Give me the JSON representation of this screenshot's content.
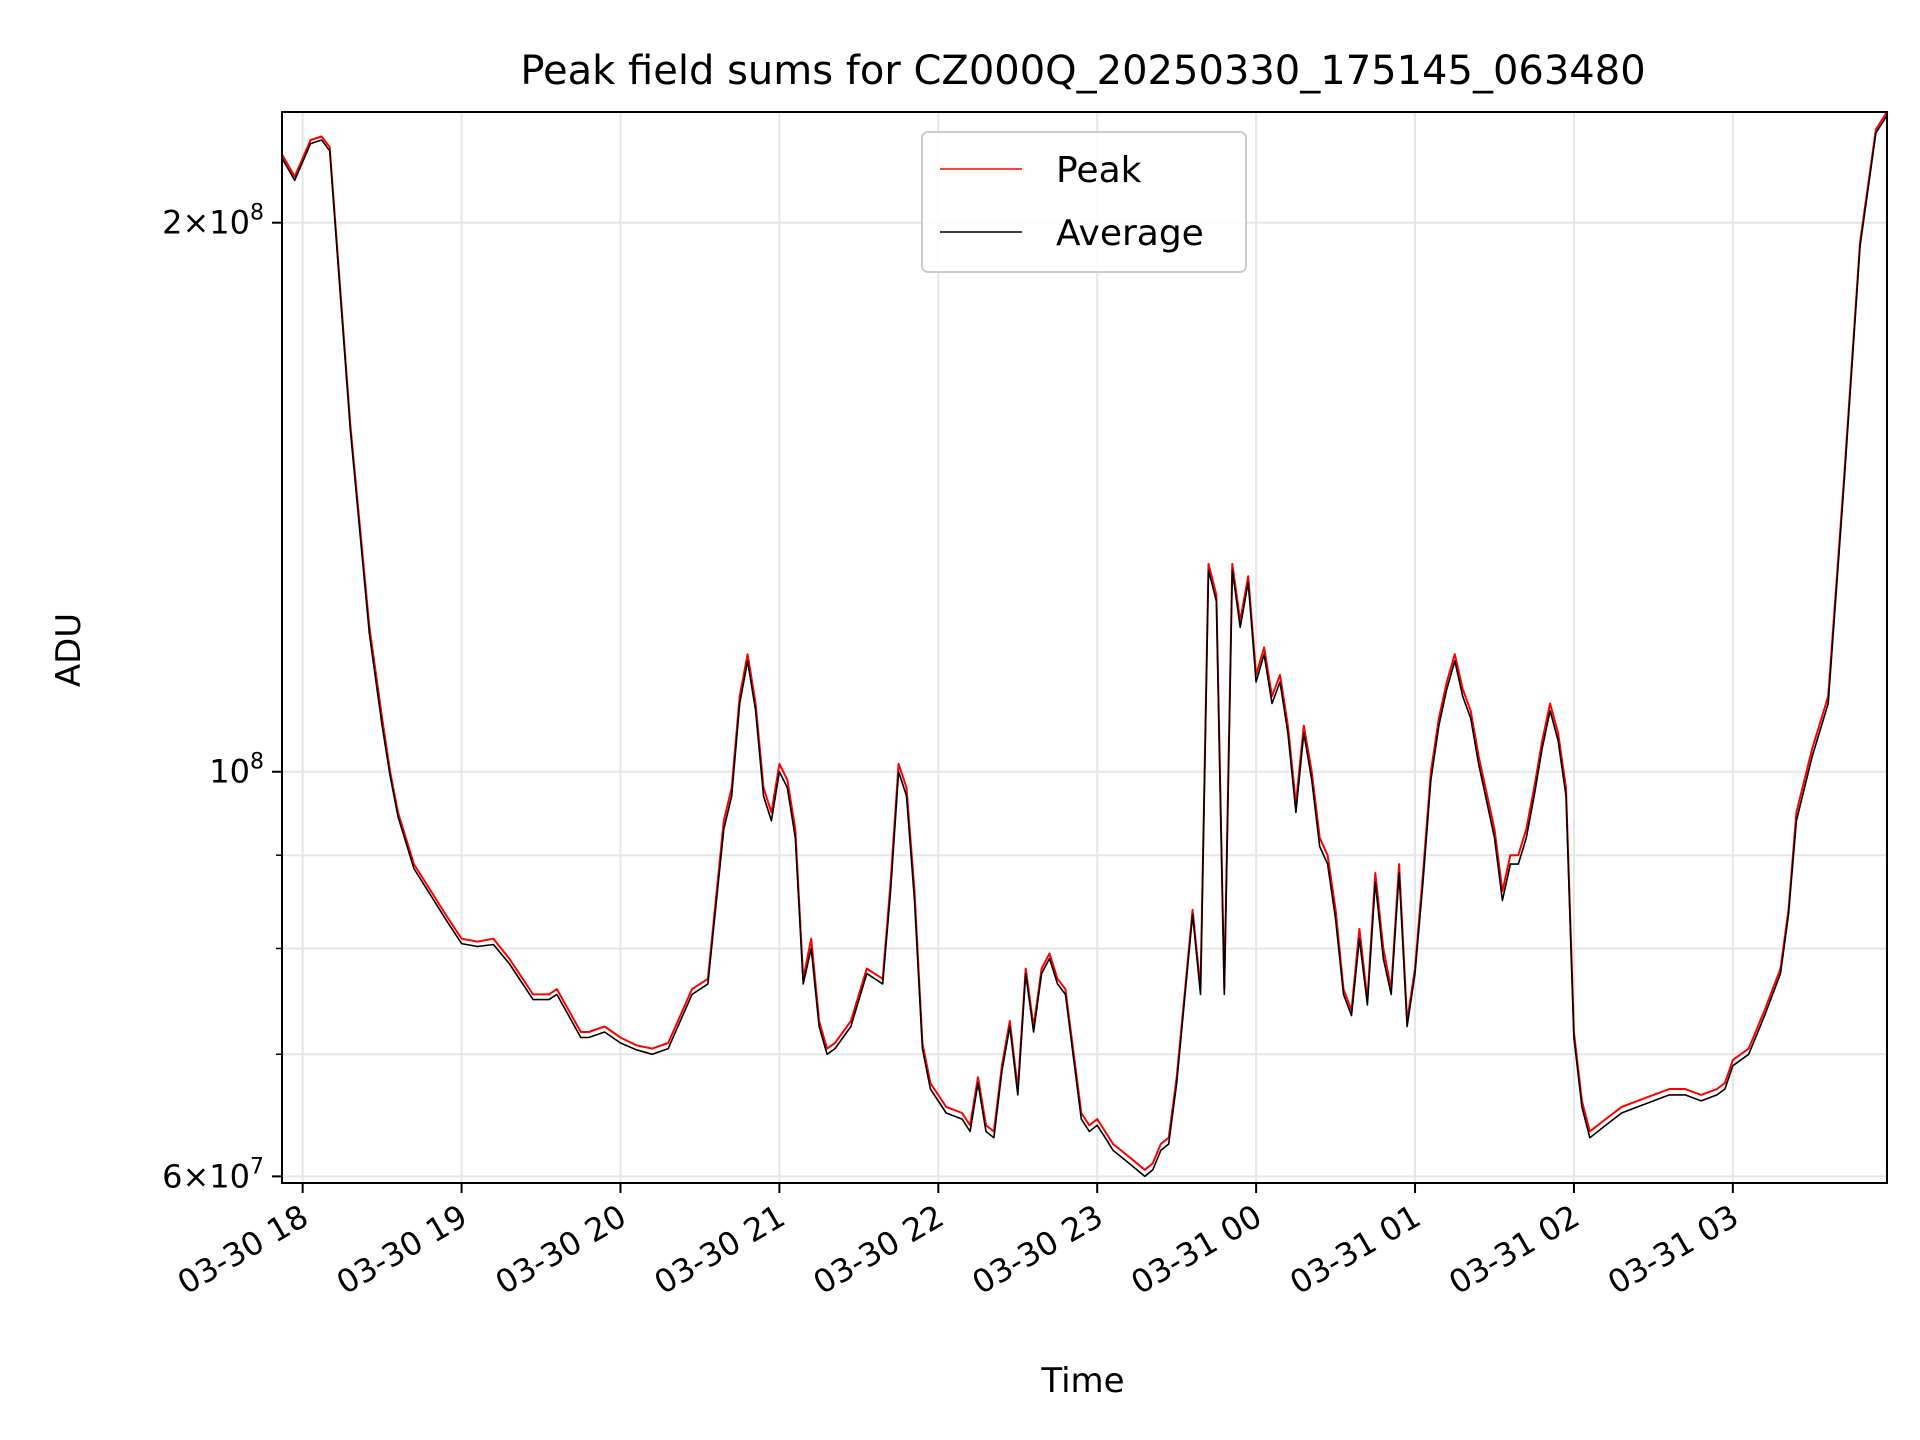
{
  "chart_data": {
    "type": "line",
    "title": "Peak field sums for CZ000Q_20250330_175145_063480",
    "xlabel": "Time",
    "ylabel": "ADU",
    "y_scale": "log",
    "ylim": [
      59500000,
      230000000
    ],
    "xlim_hours": [
      17.87,
      27.97
    ],
    "x_hour_offsets": [
      17.87,
      17.95,
      18.05,
      18.12,
      18.17,
      18.3,
      18.42,
      18.5,
      18.55,
      18.6,
      18.7,
      18.9,
      19.0,
      19.1,
      19.2,
      19.3,
      19.45,
      19.55,
      19.6,
      19.75,
      19.8,
      19.9,
      20.0,
      20.1,
      20.2,
      20.3,
      20.45,
      20.55,
      20.65,
      20.7,
      20.75,
      20.8,
      20.85,
      20.9,
      20.95,
      21.0,
      21.05,
      21.1,
      21.15,
      21.2,
      21.25,
      21.3,
      21.35,
      21.45,
      21.55,
      21.65,
      21.7,
      21.75,
      21.8,
      21.85,
      21.9,
      21.95,
      22.05,
      22.15,
      22.2,
      22.25,
      22.3,
      22.35,
      22.4,
      22.45,
      22.5,
      22.55,
      22.6,
      22.65,
      22.7,
      22.75,
      22.8,
      22.9,
      22.95,
      23.0,
      23.05,
      23.1,
      23.15,
      23.2,
      23.3,
      23.35,
      23.4,
      23.45,
      23.5,
      23.55,
      23.6,
      23.65,
      23.7,
      23.75,
      23.8,
      23.85,
      23.9,
      23.95,
      24.0,
      24.05,
      24.1,
      24.15,
      24.2,
      24.25,
      24.3,
      24.35,
      24.4,
      24.45,
      24.5,
      24.55,
      24.6,
      24.65,
      24.7,
      24.75,
      24.8,
      24.85,
      24.9,
      24.95,
      25.0,
      25.05,
      25.1,
      25.15,
      25.2,
      25.25,
      25.3,
      25.35,
      25.4,
      25.5,
      25.55,
      25.6,
      25.65,
      25.7,
      25.75,
      25.8,
      25.85,
      25.9,
      25.95,
      26.0,
      26.05,
      26.1,
      26.15,
      26.2,
      26.3,
      26.4,
      26.5,
      26.6,
      26.7,
      26.8,
      26.9,
      26.95,
      27.0,
      27.1,
      27.2,
      27.3,
      27.35,
      27.4,
      27.5,
      27.6,
      27.7,
      27.8,
      27.9,
      27.97
    ],
    "series": [
      {
        "name": "Peak",
        "color": "#ff0000",
        "line_width": 1,
        "values": [
          218000000.0,
          212000000.0,
          222000000.0,
          223000000.0,
          220000000.0,
          155000000.0,
          120000000.0,
          107000000.0,
          100000000.0,
          95000000.0,
          89000000.0,
          83500000.0,
          81000000.0,
          80700000.0,
          81000000.0,
          79000000.0,
          75500000.0,
          75500000.0,
          76000000.0,
          72000000.0,
          72000000.0,
          72500000.0,
          71500000.0,
          70800000.0,
          70500000.0,
          71000000.0,
          76000000.0,
          77000000.0,
          94000000.0,
          98000000.0,
          110000000.0,
          116000000.0,
          109000000.0,
          98000000.0,
          95000000.0,
          101000000.0,
          99000000.0,
          93000000.0,
          77000000.0,
          81000000.0,
          73000000.0,
          70500000.0,
          71000000.0,
          73000000.0,
          78000000.0,
          77000000.0,
          87000000.0,
          101000000.0,
          98000000.0,
          86000000.0,
          71000000.0,
          67500000.0,
          65500000.0,
          65000000.0,
          64000000.0,
          68000000.0,
          64000000.0,
          63500000.0,
          69000000.0,
          73000000.0,
          67000000.0,
          78000000.0,
          72500000.0,
          78000000.0,
          79500000.0,
          77000000.0,
          76000000.0,
          65000000.0,
          64000000.0,
          64500000.0,
          63500000.0,
          62500000.0,
          62000000.0,
          61500000.0,
          60500000.0,
          61000000.0,
          62500000.0,
          63000000.0,
          68000000.0,
          75500000.0,
          84000000.0,
          76000000.0,
          130000000.0,
          125000000.0,
          76000000.0,
          130000000.0,
          121000000.0,
          128000000.0,
          113000000.0,
          117000000.0,
          110000000.0,
          113000000.0,
          106000000.0,
          96000000.0,
          106000000.0,
          100000000.0,
          92000000.0,
          90000000.0,
          84000000.0,
          76000000.0,
          74000000.0,
          82000000.0,
          75000000.0,
          88000000.0,
          80000000.0,
          76000000.0,
          89000000.0,
          73000000.0,
          78000000.0,
          88000000.0,
          100000000.0,
          107000000.0,
          112000000.0,
          116000000.0,
          111000000.0,
          108000000.0,
          102000000.0,
          93000000.0,
          86000000.0,
          90000000.0,
          90000000.0,
          93000000.0,
          98000000.0,
          104000000.0,
          109000000.0,
          105000000.0,
          98000000.0,
          72000000.0,
          66000000.0,
          63500000.0,
          64000000.0,
          64500000.0,
          65500000.0,
          66000000.0,
          66500000.0,
          67000000.0,
          67000000.0,
          66500000.0,
          67000000.0,
          67500000.0,
          69500000.0,
          70500000.0,
          74000000.0,
          78000000.0,
          84000000.0,
          95000000.0,
          103000000.0,
          110000000.0,
          145000000.0,
          195000000.0,
          225000000.0,
          230000000.0,
          230000000.0
        ]
      },
      {
        "name": "Average",
        "color": "#000000",
        "line_width": 1,
        "values": [
          217000000.0,
          211000000.0,
          221000000.0,
          222000000.0,
          219000000.0,
          154000000.0,
          119000000.0,
          106000000.0,
          99500000.0,
          94500000.0,
          88500000.0,
          83000000.0,
          80500000.0,
          80200000.0,
          80400000.0,
          78500000.0,
          75000000.0,
          75000000.0,
          75500000.0,
          71500000.0,
          71500000.0,
          72000000.0,
          71000000.0,
          70400000.0,
          70000000.0,
          70500000.0,
          75500000.0,
          76500000.0,
          93000000.0,
          97000000.0,
          109000000.0,
          115000000.0,
          108000000.0,
          97000000.0,
          94000000.0,
          100000000.0,
          98000000.0,
          92000000.0,
          76500000.0,
          80000000.0,
          72500000.0,
          70000000.0,
          70500000.0,
          72500000.0,
          77500000.0,
          76500000.0,
          86000000.0,
          100000000.0,
          97000000.0,
          85000000.0,
          70500000.0,
          67000000.0,
          65000000.0,
          64500000.0,
          63500000.0,
          67500000.0,
          63500000.0,
          63000000.0,
          68500000.0,
          72500000.0,
          66500000.0,
          77500000.0,
          72000000.0,
          77500000.0,
          79000000.0,
          76500000.0,
          75500000.0,
          64500000.0,
          63500000.0,
          64000000.0,
          63000000.0,
          62000000.0,
          61500000.0,
          61000000.0,
          60000000.0,
          60500000.0,
          62000000.0,
          62500000.0,
          67500000.0,
          75000000.0,
          83500000.0,
          75500000.0,
          129000000.0,
          124000000.0,
          75500000.0,
          129000000.0,
          120000000.0,
          127000000.0,
          112000000.0,
          116000000.0,
          109000000.0,
          112000000.0,
          105000000.0,
          95000000.0,
          105000000.0,
          99000000.0,
          91000000.0,
          89000000.0,
          83000000.0,
          75500000.0,
          73500000.0,
          81000000.0,
          74500000.0,
          87000000.0,
          79000000.0,
          75500000.0,
          88000000.0,
          72500000.0,
          77500000.0,
          87000000.0,
          99000000.0,
          106000000.0,
          111000000.0,
          115000000.0,
          110000000.0,
          107000000.0,
          101000000.0,
          92000000.0,
          85000000.0,
          89000000.0,
          89000000.0,
          92000000.0,
          97000000.0,
          103000000.0,
          108000000.0,
          104000000.0,
          97000000.0,
          71500000.0,
          65500000.0,
          63000000.0,
          63500000.0,
          64000000.0,
          65000000.0,
          65500000.0,
          66000000.0,
          66500000.0,
          66500000.0,
          66000000.0,
          66500000.0,
          67000000.0,
          69000000.0,
          70000000.0,
          73500000.0,
          77500000.0,
          83500000.0,
          94000000.0,
          102000000.0,
          109000000.0,
          144000000.0,
          194000000.0,
          224000000.0,
          229000000.0,
          229000000.0
        ]
      }
    ],
    "x_ticks": [
      {
        "hour": 18,
        "label": "03-30 18"
      },
      {
        "hour": 19,
        "label": "03-30 19"
      },
      {
        "hour": 20,
        "label": "03-30 20"
      },
      {
        "hour": 21,
        "label": "03-30 21"
      },
      {
        "hour": 22,
        "label": "03-30 22"
      },
      {
        "hour": 23,
        "label": "03-30 23"
      },
      {
        "hour": 24,
        "label": "03-31 00"
      },
      {
        "hour": 25,
        "label": "03-31 01"
      },
      {
        "hour": 26,
        "label": "03-31 02"
      },
      {
        "hour": 27,
        "label": "03-31 03"
      }
    ],
    "y_major_ticks": [
      {
        "value": 60000000,
        "mantissa": "6",
        "exponent": "7"
      },
      {
        "value": 100000000,
        "mantissa": "",
        "exponent": "8"
      },
      {
        "value": 200000000,
        "mantissa": "2",
        "exponent": "8"
      }
    ],
    "y_minor_ticks": [
      70000000,
      80000000,
      90000000
    ],
    "legend": {
      "position": "upper-center",
      "entries": [
        "Peak",
        "Average"
      ]
    },
    "grid": true
  }
}
